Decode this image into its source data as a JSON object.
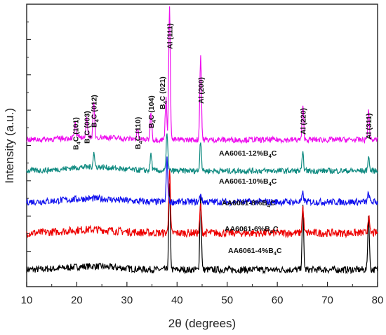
{
  "chart_data": {
    "type": "line",
    "xlabel": "2θ (degrees)",
    "ylabel": "Intensity (a.u.)",
    "xlim": [
      10,
      80
    ],
    "xticks": [
      10,
      20,
      30,
      40,
      50,
      60,
      70,
      80
    ],
    "yticks_labeled": false,
    "grid": false,
    "series": [
      {
        "label_parts": [
          "AA6061-4%B",
          "4",
          "C"
        ],
        "color": "#000000",
        "baseline": 0.06,
        "noise": 0.012,
        "hump": 0.012,
        "peaks": [
          [
            38.5,
            0.3
          ],
          [
            44.7,
            0.26
          ],
          [
            65.1,
            0.22
          ],
          [
            78.2,
            0.19
          ]
        ]
      },
      {
        "label_parts": [
          "AA6061-6%B",
          "4",
          "C"
        ],
        "color": "#ee0000",
        "baseline": 0.19,
        "noise": 0.014,
        "hump": 0.012,
        "peaks": [
          [
            38.5,
            0.23
          ],
          [
            44.7,
            0.1
          ],
          [
            65.1,
            0.09
          ],
          [
            78.2,
            0.06
          ]
        ]
      },
      {
        "label_parts": [
          "AA6061-8%B",
          "4",
          "C"
        ],
        "color": "#1010ee",
        "baseline": 0.3,
        "noise": 0.012,
        "hump": 0.012,
        "peaks": [
          [
            38.0,
            0.15
          ],
          [
            44.7,
            0.03
          ],
          [
            65.1,
            0.03
          ],
          [
            78.2,
            0.03
          ]
        ]
      },
      {
        "label_parts": [
          "AA6061-10%B",
          "4",
          "C"
        ],
        "color": "#0f8a80",
        "baseline": 0.41,
        "noise": 0.01,
        "hump": 0.014,
        "peaks": [
          [
            23.4,
            0.05
          ],
          [
            34.8,
            0.06
          ],
          [
            38.0,
            0.14
          ],
          [
            44.7,
            0.11
          ],
          [
            65.1,
            0.06
          ],
          [
            78.2,
            0.05
          ]
        ]
      },
      {
        "label_parts": [
          "AA6061-12%B",
          "4",
          "C"
        ],
        "color": "#ee10ee",
        "baseline": 0.52,
        "noise": 0.01,
        "hump": 0.01,
        "peaks": [
          [
            19.7,
            0.05
          ],
          [
            22.0,
            0.07
          ],
          [
            23.4,
            0.12
          ],
          [
            32.1,
            0.04
          ],
          [
            34.8,
            0.1
          ],
          [
            37.8,
            0.15
          ],
          [
            38.5,
            0.48
          ],
          [
            44.7,
            0.3
          ],
          [
            65.1,
            0.12
          ],
          [
            78.2,
            0.1
          ]
        ]
      }
    ],
    "peak_labels": [
      {
        "x": 19.7,
        "parts": [
          "B",
          "4",
          "C (101)"
        ]
      },
      {
        "x": 22.0,
        "parts": [
          "B",
          "4",
          "C (003)"
        ]
      },
      {
        "x": 23.4,
        "parts": [
          "B",
          "4",
          "C (012)"
        ]
      },
      {
        "x": 32.1,
        "parts": [
          "B",
          "4",
          "C (110)"
        ]
      },
      {
        "x": 34.8,
        "parts": [
          "B",
          "4",
          "C (104)"
        ]
      },
      {
        "x": 37.0,
        "parts": [
          "B",
          "4",
          "C (021)"
        ]
      },
      {
        "x": 38.5,
        "parts": [
          "Al (111)"
        ]
      },
      {
        "x": 44.7,
        "parts": [
          "Al (200)"
        ]
      },
      {
        "x": 65.1,
        "parts": [
          "Al (220)"
        ]
      },
      {
        "x": 78.2,
        "parts": [
          "Al (311)"
        ]
      }
    ]
  }
}
